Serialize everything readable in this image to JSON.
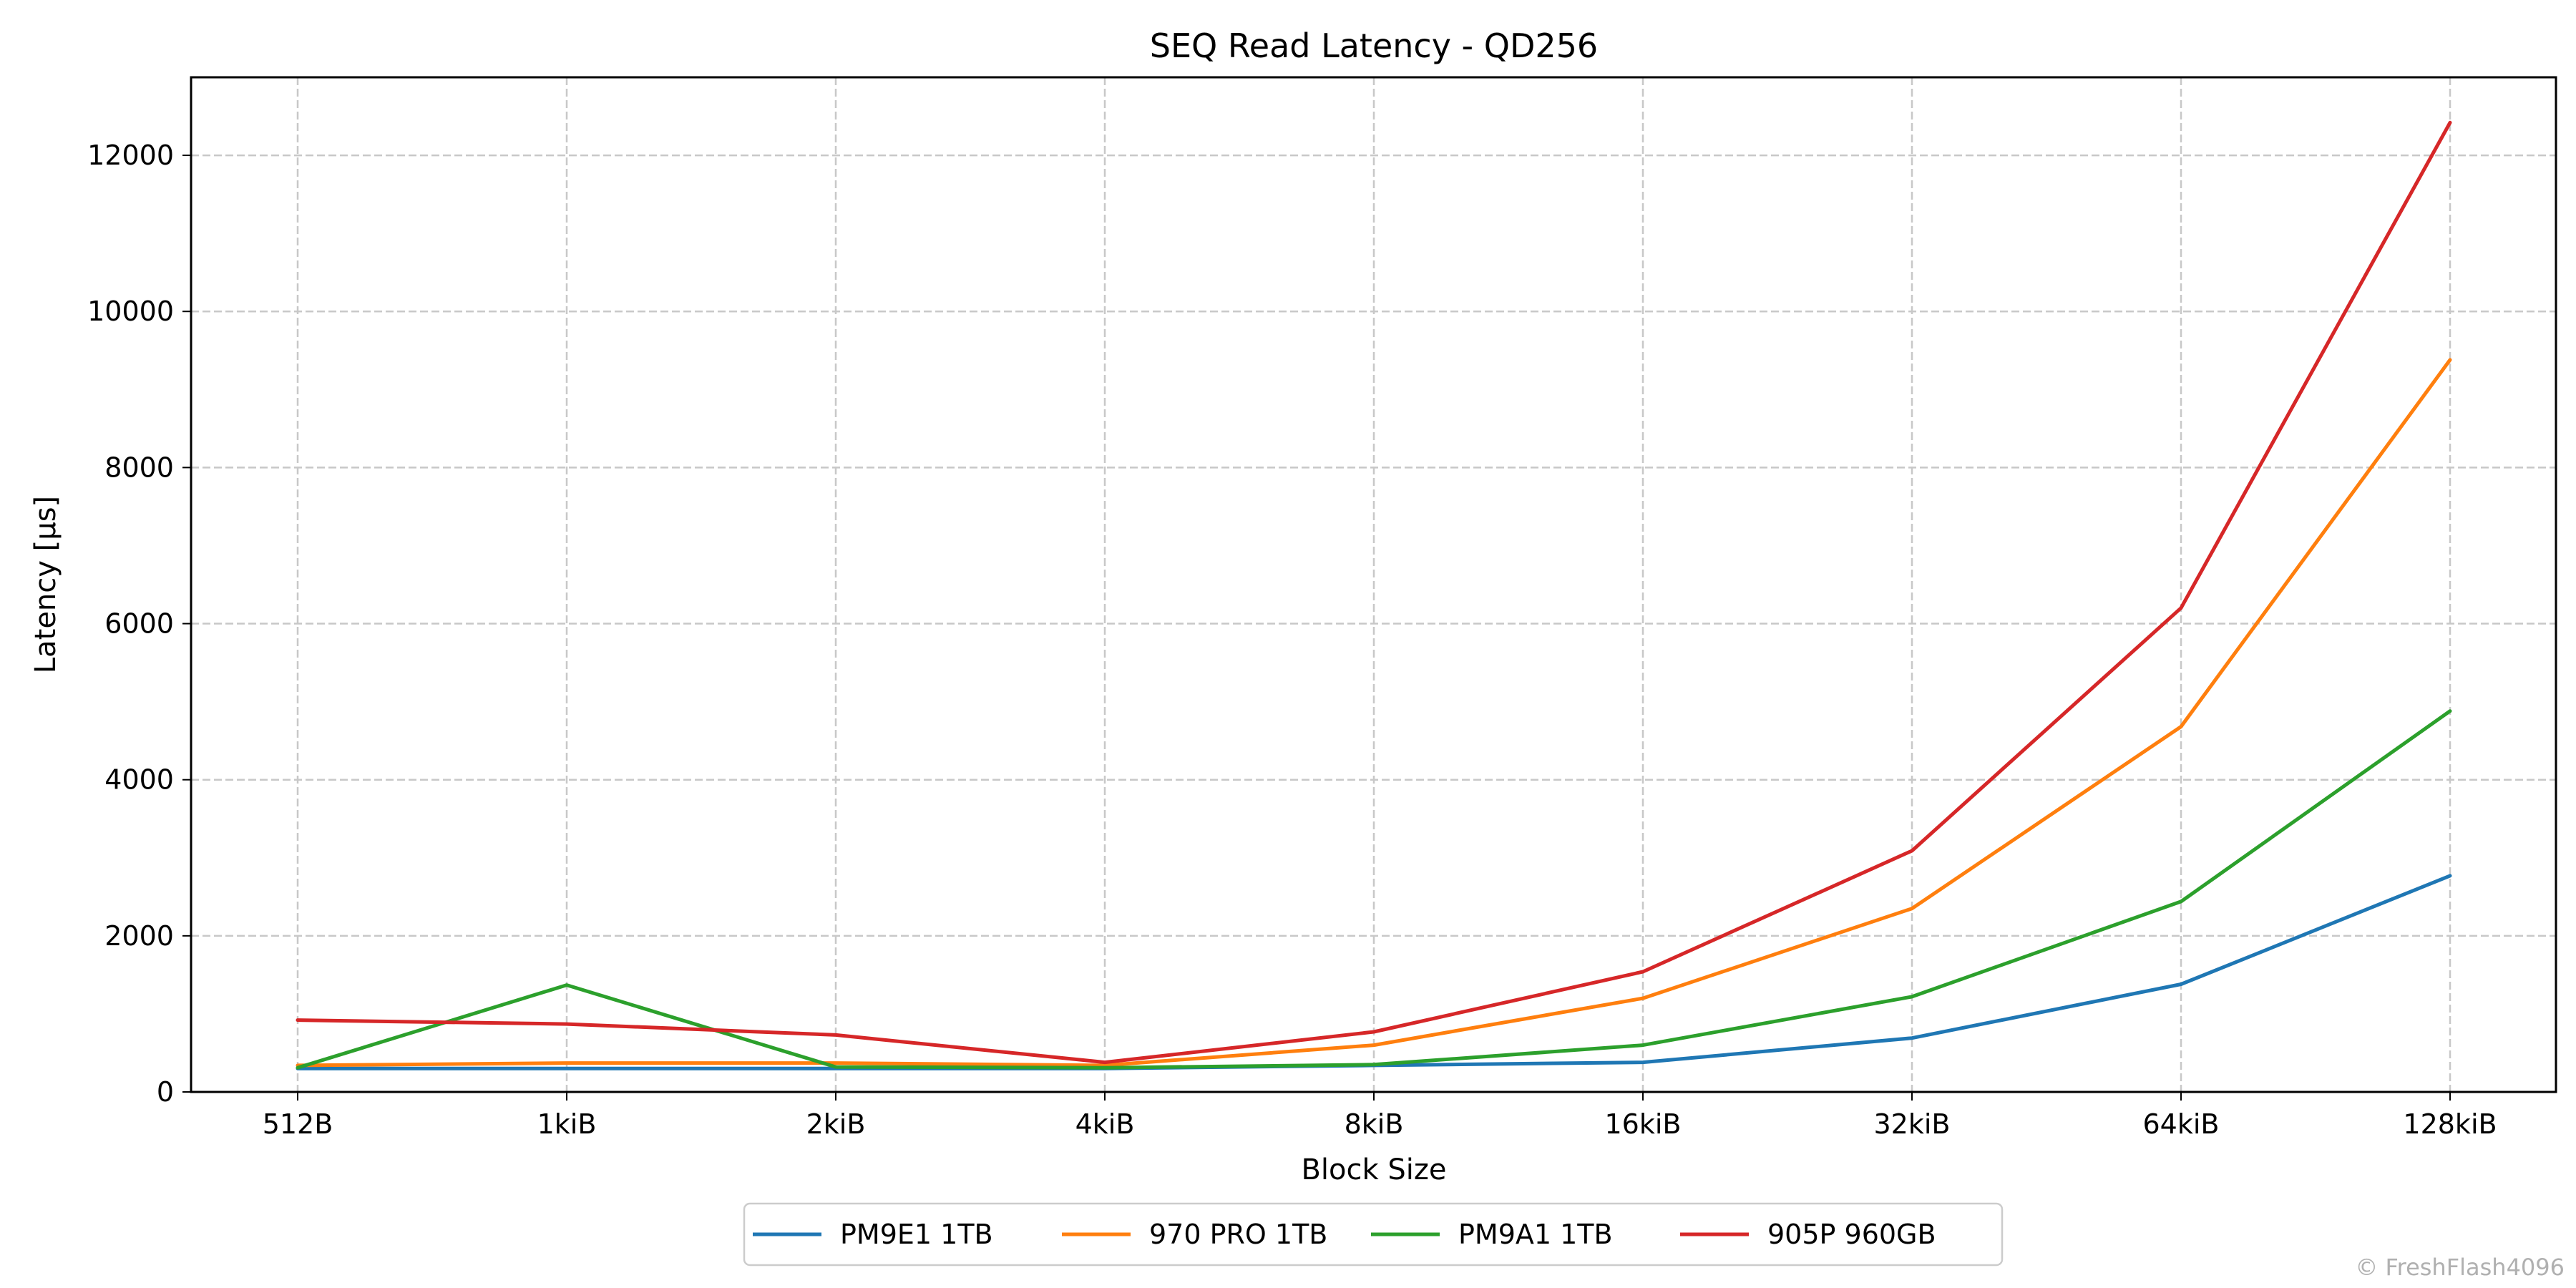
{
  "chart_data": {
    "type": "line",
    "title": "SEQ Read Latency - QD256",
    "xlabel": "Block Size",
    "ylabel": "Latency [µs]",
    "categories": [
      "512B",
      "1kiB",
      "2kiB",
      "4kiB",
      "8kiB",
      "16kiB",
      "32kiB",
      "64kiB",
      "128kiB"
    ],
    "ylim": [
      0,
      13000
    ],
    "yticks": [
      0,
      2000,
      4000,
      6000,
      8000,
      10000,
      12000
    ],
    "grid": true,
    "legend_position": "bottom-center",
    "series": [
      {
        "name": "PM9E1 1TB",
        "color": "#1f77b4",
        "values": [
          300,
          300,
          300,
          300,
          340,
          380,
          690,
          1380,
          2770
        ]
      },
      {
        "name": "970 PRO 1TB",
        "color": "#ff7f0e",
        "values": [
          340,
          370,
          370,
          340,
          600,
          1200,
          2350,
          4680,
          9380
        ]
      },
      {
        "name": "PM9A1 1TB",
        "color": "#2ca02c",
        "values": [
          310,
          1370,
          320,
          310,
          350,
          600,
          1220,
          2440,
          4880
        ]
      },
      {
        "name": "905P 960GB",
        "color": "#d62728",
        "values": [
          920,
          870,
          730,
          380,
          770,
          1540,
          3090,
          6200,
          12420
        ]
      }
    ],
    "watermark": "© FreshFlash4096"
  }
}
